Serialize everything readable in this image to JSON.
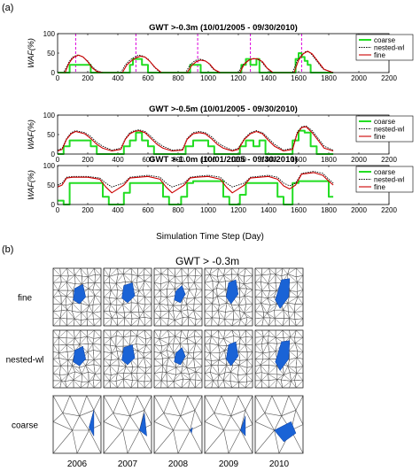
{
  "panel_a_label": "(a)",
  "panel_b_label": "(b)",
  "xlabel": "Simulation Time Step (Day)",
  "chart_data": [
    {
      "type": "line",
      "title": "GWT >-0.3m  (10/01/2005 - 09/30/2010)",
      "ylabel": "WAF(%)",
      "xlim": [
        0,
        2200
      ],
      "ylim": [
        0,
        100
      ],
      "xticks": [
        0,
        200,
        400,
        600,
        800,
        1000,
        1200,
        1400,
        1600,
        1800,
        2000,
        2200
      ],
      "yticks": [
        0,
        50,
        100
      ],
      "vlines": [
        120,
        520,
        930,
        1280,
        1620
      ],
      "legend": [
        "coarse",
        "nested-wl",
        "fine"
      ],
      "legend_position": "top-right",
      "series": [
        {
          "name": "coarse",
          "color": "#22dd22",
          "x": [
            0,
            80,
            80,
            100,
            100,
            220,
            220,
            480,
            480,
            500,
            500,
            560,
            560,
            600,
            600,
            880,
            880,
            950,
            950,
            1220,
            1220,
            1250,
            1250,
            1280,
            1280,
            1320,
            1320,
            1340,
            1340,
            1580,
            1580,
            1600,
            1600,
            1620,
            1620,
            1640,
            1640,
            1660,
            1660,
            1680,
            1680,
            1830
          ],
          "y": [
            0,
            0,
            20,
            20,
            20,
            20,
            0,
            0,
            20,
            20,
            35,
            35,
            20,
            20,
            0,
            0,
            20,
            20,
            0,
            0,
            20,
            20,
            35,
            35,
            20,
            20,
            35,
            35,
            0,
            0,
            35,
            35,
            50,
            50,
            40,
            40,
            30,
            30,
            20,
            20,
            0,
            0
          ]
        },
        {
          "name": "nested-wl",
          "color": "#000000",
          "x": [
            0,
            40,
            60,
            80,
            100,
            130,
            160,
            200,
            230,
            260,
            300,
            420,
            450,
            480,
            510,
            540,
            570,
            600,
            640,
            680,
            850,
            880,
            910,
            940,
            970,
            1000,
            1030,
            1070,
            1200,
            1230,
            1260,
            1290,
            1320,
            1350,
            1380,
            1420,
            1560,
            1590,
            1620,
            1650,
            1680,
            1720,
            1760,
            1830
          ],
          "y": [
            0,
            0,
            15,
            30,
            40,
            45,
            42,
            30,
            15,
            5,
            0,
            0,
            20,
            32,
            40,
            45,
            42,
            35,
            15,
            0,
            0,
            20,
            30,
            35,
            32,
            25,
            10,
            0,
            0,
            20,
            30,
            35,
            35,
            30,
            15,
            0,
            0,
            30,
            45,
            55,
            50,
            30,
            10,
            0
          ]
        },
        {
          "name": "fine",
          "color": "#cc0000",
          "x": [
            0,
            50,
            70,
            90,
            110,
            140,
            170,
            200,
            230,
            260,
            300,
            430,
            460,
            490,
            520,
            550,
            580,
            610,
            650,
            690,
            860,
            890,
            920,
            950,
            980,
            1010,
            1040,
            1080,
            1210,
            1240,
            1270,
            1300,
            1330,
            1360,
            1390,
            1430,
            1570,
            1600,
            1630,
            1660,
            1690,
            1730,
            1770,
            1830
          ],
          "y": [
            0,
            0,
            20,
            32,
            40,
            45,
            40,
            28,
            12,
            3,
            0,
            0,
            20,
            30,
            38,
            42,
            40,
            30,
            12,
            0,
            0,
            18,
            28,
            32,
            30,
            22,
            8,
            0,
            0,
            22,
            32,
            36,
            35,
            28,
            12,
            0,
            0,
            32,
            48,
            55,
            48,
            28,
            8,
            0
          ]
        }
      ]
    },
    {
      "type": "line",
      "title": "GWT >-0.5m  (10/01/2005 - 09/30/2010)",
      "ylabel": "WAF(%)",
      "xlim": [
        0,
        2200
      ],
      "ylim": [
        0,
        100
      ],
      "xticks": [
        0,
        200,
        400,
        600,
        800,
        1000,
        1200,
        1400,
        1600,
        1800,
        2000,
        2200
      ],
      "yticks": [
        0,
        50,
        100
      ],
      "legend": [
        "coarse",
        "nested-wl",
        "fine"
      ],
      "legend_position": "top-right",
      "series": [
        {
          "name": "coarse",
          "color": "#22dd22",
          "x": [
            0,
            40,
            40,
            80,
            80,
            220,
            220,
            260,
            260,
            440,
            440,
            480,
            480,
            520,
            520,
            560,
            560,
            600,
            600,
            640,
            640,
            850,
            850,
            900,
            900,
            1000,
            1000,
            1040,
            1040,
            1210,
            1210,
            1250,
            1250,
            1300,
            1300,
            1340,
            1340,
            1380,
            1380,
            1560,
            1560,
            1600,
            1600,
            1640,
            1640,
            1680,
            1680,
            1720,
            1720,
            1830
          ],
          "y": [
            0,
            0,
            20,
            20,
            35,
            35,
            20,
            20,
            0,
            0,
            20,
            20,
            35,
            35,
            55,
            55,
            35,
            35,
            20,
            20,
            0,
            0,
            20,
            20,
            35,
            35,
            20,
            20,
            0,
            0,
            20,
            20,
            35,
            35,
            20,
            20,
            35,
            35,
            0,
            0,
            35,
            35,
            60,
            60,
            55,
            55,
            20,
            20,
            0,
            0
          ]
        },
        {
          "name": "nested-wl",
          "color": "#000000",
          "x": [
            0,
            30,
            60,
            90,
            120,
            180,
            220,
            260,
            300,
            360,
            420,
            450,
            480,
            510,
            540,
            580,
            620,
            660,
            700,
            760,
            830,
            860,
            900,
            940,
            980,
            1020,
            1060,
            1100,
            1160,
            1200,
            1240,
            1280,
            1320,
            1360,
            1400,
            1440,
            1500,
            1560,
            1590,
            1620,
            1650,
            1690,
            1730,
            1770,
            1830
          ],
          "y": [
            10,
            15,
            40,
            55,
            60,
            55,
            45,
            30,
            20,
            10,
            15,
            40,
            55,
            60,
            62,
            58,
            45,
            30,
            20,
            10,
            12,
            40,
            55,
            58,
            55,
            45,
            30,
            20,
            10,
            15,
            40,
            55,
            60,
            55,
            40,
            25,
            10,
            15,
            55,
            70,
            72,
            60,
            40,
            20,
            10
          ]
        },
        {
          "name": "fine",
          "color": "#cc0000",
          "x": [
            0,
            30,
            60,
            90,
            120,
            180,
            220,
            260,
            300,
            360,
            420,
            450,
            480,
            510,
            540,
            580,
            620,
            660,
            700,
            760,
            830,
            860,
            900,
            940,
            980,
            1020,
            1060,
            1100,
            1160,
            1200,
            1240,
            1280,
            1320,
            1360,
            1400,
            1440,
            1500,
            1560,
            1590,
            1620,
            1650,
            1690,
            1730,
            1770,
            1830
          ],
          "y": [
            8,
            12,
            38,
            52,
            58,
            52,
            40,
            25,
            15,
            8,
            12,
            38,
            52,
            58,
            60,
            55,
            40,
            25,
            15,
            8,
            10,
            38,
            52,
            55,
            52,
            40,
            25,
            15,
            8,
            12,
            38,
            52,
            58,
            52,
            35,
            20,
            8,
            12,
            52,
            68,
            70,
            55,
            35,
            15,
            8
          ]
        }
      ]
    },
    {
      "type": "line",
      "title": "GWT >-1.0m  (10/01/2005 - 09/30/2010)",
      "ylabel": "WAF(%)",
      "xlim": [
        0,
        2200
      ],
      "ylim": [
        0,
        100
      ],
      "xticks": [
        0,
        200,
        400,
        600,
        800,
        1000,
        1200,
        1400,
        1600,
        1800,
        2000,
        2200
      ],
      "yticks": [
        0,
        50,
        100
      ],
      "legend": [
        "coarse",
        "nested-wl",
        "fine"
      ],
      "legend_position": "top-right",
      "series": [
        {
          "name": "coarse",
          "color": "#22dd22",
          "x": [
            0,
            40,
            40,
            80,
            80,
            300,
            300,
            340,
            340,
            440,
            440,
            480,
            480,
            700,
            700,
            740,
            740,
            820,
            820,
            860,
            860,
            900,
            900,
            1100,
            1100,
            1140,
            1140,
            1210,
            1210,
            1250,
            1250,
            1460,
            1460,
            1500,
            1500,
            1560,
            1560,
            1600,
            1600,
            1800,
            1800,
            1830
          ],
          "y": [
            10,
            10,
            0,
            0,
            55,
            55,
            20,
            20,
            0,
            0,
            30,
            30,
            55,
            55,
            20,
            20,
            0,
            0,
            20,
            20,
            55,
            55,
            60,
            60,
            20,
            20,
            0,
            0,
            25,
            25,
            55,
            55,
            20,
            20,
            0,
            0,
            55,
            55,
            60,
            60,
            20,
            20
          ]
        },
        {
          "name": "nested-wl",
          "color": "#000000",
          "x": [
            0,
            30,
            60,
            100,
            200,
            280,
            320,
            360,
            400,
            440,
            480,
            600,
            680,
            720,
            760,
            800,
            840,
            880,
            920,
            1000,
            1080,
            1120,
            1160,
            1200,
            1240,
            1280,
            1400,
            1460,
            1500,
            1540,
            1580,
            1620,
            1700,
            1760,
            1800,
            1830
          ],
          "y": [
            50,
            55,
            70,
            72,
            72,
            68,
            55,
            45,
            50,
            55,
            70,
            75,
            70,
            55,
            45,
            50,
            55,
            70,
            72,
            75,
            70,
            55,
            45,
            50,
            55,
            70,
            75,
            70,
            55,
            48,
            55,
            80,
            85,
            80,
            65,
            55
          ]
        },
        {
          "name": "fine",
          "color": "#cc0000",
          "x": [
            0,
            30,
            60,
            100,
            200,
            280,
            320,
            360,
            400,
            440,
            480,
            600,
            680,
            720,
            760,
            800,
            840,
            880,
            920,
            1000,
            1080,
            1120,
            1160,
            1200,
            1240,
            1280,
            1400,
            1460,
            1500,
            1540,
            1580,
            1620,
            1700,
            1760,
            1800,
            1830
          ],
          "y": [
            45,
            50,
            68,
            70,
            70,
            65,
            45,
            30,
            40,
            50,
            68,
            72,
            65,
            45,
            30,
            40,
            50,
            68,
            70,
            72,
            65,
            45,
            30,
            40,
            50,
            68,
            72,
            65,
            48,
            40,
            50,
            78,
            82,
            75,
            60,
            50
          ]
        }
      ]
    }
  ],
  "panel_b": {
    "title": "GWT > -0.3m",
    "rows": [
      "fine",
      "nested-wl",
      "coarse"
    ],
    "years": [
      "2006",
      "2007",
      "2008",
      "2009",
      "2010"
    ]
  }
}
